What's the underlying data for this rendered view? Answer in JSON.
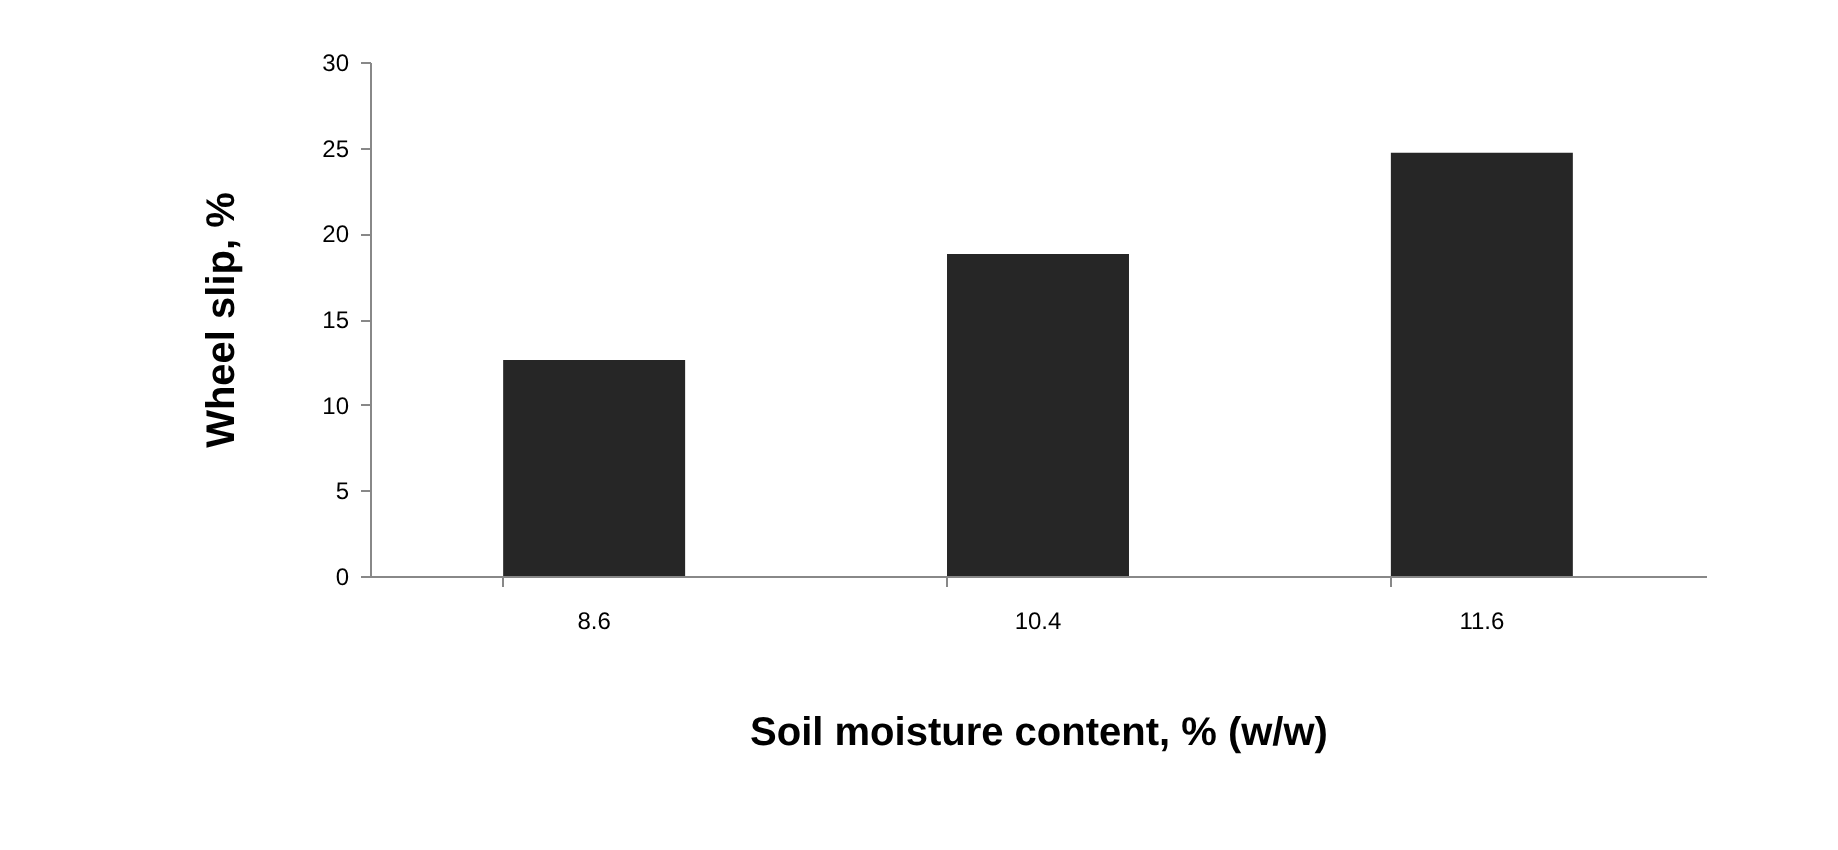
{
  "chart_data": {
    "type": "bar",
    "xlabel": "Soil moisture content, % (w/w)",
    "ylabel": "Wheel slip, %",
    "categories": [
      "8.6",
      "10.4",
      "11.6"
    ],
    "values": [
      12.6,
      18.8,
      24.7
    ],
    "color": "#262626",
    "ylim": [
      0,
      30
    ],
    "yticks": [
      0,
      5,
      10,
      15,
      20,
      25,
      30
    ],
    "grid": false
  }
}
